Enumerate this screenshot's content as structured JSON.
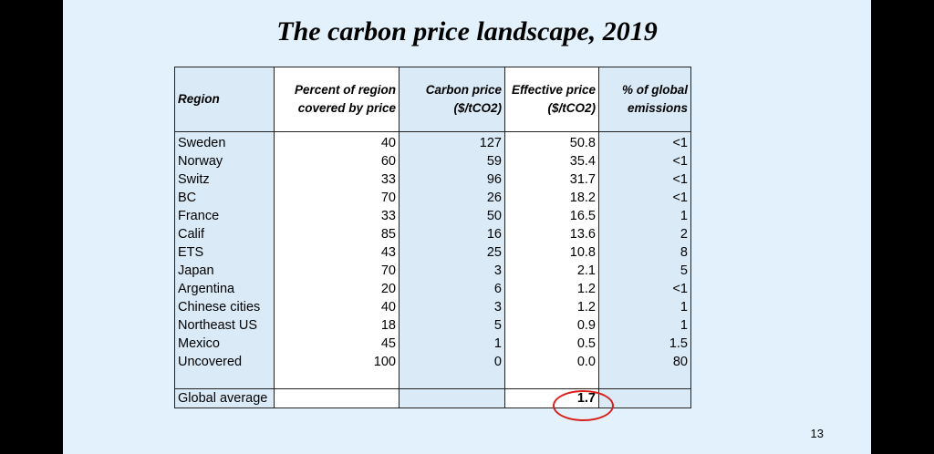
{
  "slide": {
    "title": "The carbon price landscape, 2019",
    "page_number": "13"
  },
  "table": {
    "headers": {
      "region": "Region",
      "percent": "Percent of region covered by price",
      "carbon_price": "Carbon price ($/tCO2)",
      "effective_price": "Effective price ($/tCO2)",
      "global_emissions": "% of global emissions"
    },
    "rows": [
      {
        "region": "Sweden",
        "percent": "40",
        "carbon_price": "127",
        "effective_price": "50.8",
        "global": "<1"
      },
      {
        "region": "Norway",
        "percent": "60",
        "carbon_price": "59",
        "effective_price": "35.4",
        "global": "<1"
      },
      {
        "region": "Switz",
        "percent": "33",
        "carbon_price": "96",
        "effective_price": "31.7",
        "global": "<1"
      },
      {
        "region": "BC",
        "percent": "70",
        "carbon_price": "26",
        "effective_price": "18.2",
        "global": "<1"
      },
      {
        "region": "France",
        "percent": "33",
        "carbon_price": "50",
        "effective_price": "16.5",
        "global": "1"
      },
      {
        "region": "Calif",
        "percent": "85",
        "carbon_price": "16",
        "effective_price": "13.6",
        "global": "2"
      },
      {
        "region": "ETS",
        "percent": "43",
        "carbon_price": "25",
        "effective_price": "10.8",
        "global": "8"
      },
      {
        "region": "Japan",
        "percent": "70",
        "carbon_price": "3",
        "effective_price": "2.1",
        "global": "5"
      },
      {
        "region": "Argentina",
        "percent": "20",
        "carbon_price": "6",
        "effective_price": "1.2",
        "global": "<1"
      },
      {
        "region": "Chinese cities",
        "percent": "40",
        "carbon_price": "3",
        "effective_price": "1.2",
        "global": "1"
      },
      {
        "region": "Northeast US",
        "percent": "18",
        "carbon_price": "5",
        "effective_price": "0.9",
        "global": "1"
      },
      {
        "region": "Mexico",
        "percent": "45",
        "carbon_price": "1",
        "effective_price": "0.5",
        "global": "1.5"
      },
      {
        "region": "Uncovered",
        "percent": "100",
        "carbon_price": "0",
        "effective_price": "0.0",
        "global": "80"
      }
    ],
    "average": {
      "label": "Global average",
      "effective_price": "1.7"
    }
  },
  "colors": {
    "slide_background": "#e3f1fc",
    "shaded_column": "#dbeaf7",
    "highlight": "#d9201c"
  }
}
